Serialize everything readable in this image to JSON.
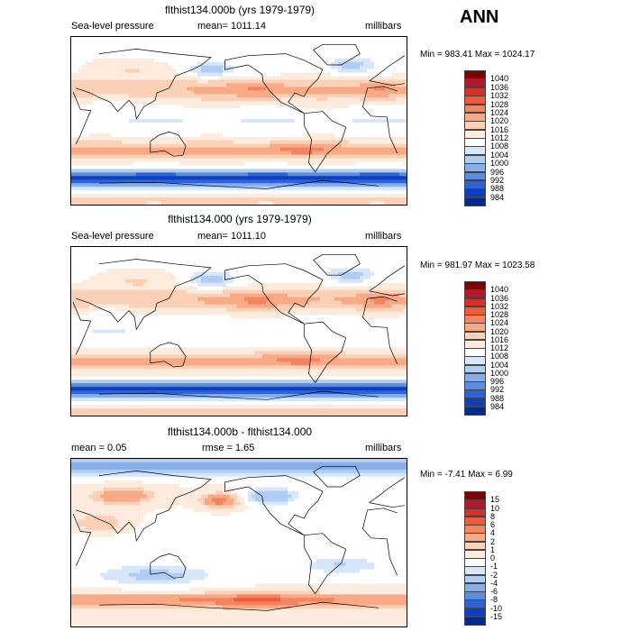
{
  "season": "ANN",
  "panels": [
    {
      "title": "flthist134.000b (yrs 1979-1979)",
      "left_label": "Sea-level pressure",
      "center_label": "mean= 1011.14",
      "right_label": "millibars",
      "minmax": "Min = 983.41 Max = 1024.17",
      "colorbar": {
        "labels": [
          "1040",
          "1036",
          "1032",
          "1028",
          "1024",
          "1020",
          "1016",
          "1012",
          "1008",
          "1004",
          "1000",
          "996",
          "992",
          "988",
          "984"
        ],
        "colors": [
          "#7f0000",
          "#b2182b",
          "#d73027",
          "#ef5a3a",
          "#f4845f",
          "#f7aa85",
          "#fbd0b6",
          "#fdebdd",
          "#ffffff",
          "#d7e7fb",
          "#b0cdf4",
          "#86aeea",
          "#5b8de0",
          "#2e64d6",
          "#0d3fc0",
          "#002a8f"
        ]
      }
    },
    {
      "title": "flthist134.000 (yrs 1979-1979)",
      "left_label": "Sea-level pressure",
      "center_label": "mean= 1011.10",
      "right_label": "millibars",
      "minmax": "Min = 981.97 Max = 1023.58",
      "colorbar": {
        "labels": [
          "1040",
          "1036",
          "1032",
          "1028",
          "1024",
          "1020",
          "1016",
          "1012",
          "1008",
          "1004",
          "1000",
          "996",
          "992",
          "988",
          "984"
        ],
        "colors": [
          "#7f0000",
          "#b2182b",
          "#d73027",
          "#ef5a3a",
          "#f4845f",
          "#f7aa85",
          "#fbd0b6",
          "#fdebdd",
          "#ffffff",
          "#d7e7fb",
          "#b0cdf4",
          "#86aeea",
          "#5b8de0",
          "#2e64d6",
          "#0d3fc0",
          "#002a8f"
        ]
      }
    },
    {
      "title": "flthist134.000b - flthist134.000",
      "left_label": "mean =    0.05",
      "center_label": "rmse =    1.65",
      "right_label": "millibars",
      "minmax": "Min =  -7.41 Max =   6.99",
      "colorbar": {
        "labels": [
          "15",
          "10",
          "8",
          "6",
          "4",
          "2",
          "1",
          "0",
          "-1",
          "-2",
          "-4",
          "-6",
          "-8",
          "-10",
          "-15"
        ],
        "colors": [
          "#7f0000",
          "#b2182b",
          "#d73027",
          "#ef5a3a",
          "#f4845f",
          "#f7aa85",
          "#fbd0b6",
          "#fdebdd",
          "#ffffff",
          "#d7e7fb",
          "#b0cdf4",
          "#86aeea",
          "#5b8de0",
          "#2e64d6",
          "#0d3fc0",
          "#002a8f"
        ]
      }
    }
  ],
  "chart_data": [
    {
      "type": "heatmap",
      "title": "flthist134.000b (yrs 1979-1979)",
      "variable": "Sea-level pressure",
      "units": "millibars",
      "mean": 1011.14,
      "min": 983.41,
      "max": 1024.17,
      "contour_levels": [
        984,
        988,
        992,
        996,
        1000,
        1004,
        1008,
        1012,
        1016,
        1020,
        1024,
        1028,
        1032,
        1036,
        1040
      ]
    },
    {
      "type": "heatmap",
      "title": "flthist134.000 (yrs 1979-1979)",
      "variable": "Sea-level pressure",
      "units": "millibars",
      "mean": 1011.1,
      "min": 981.97,
      "max": 1023.58,
      "contour_levels": [
        984,
        988,
        992,
        996,
        1000,
        1004,
        1008,
        1012,
        1016,
        1020,
        1024,
        1028,
        1032,
        1036,
        1040
      ]
    },
    {
      "type": "heatmap",
      "title": "flthist134.000b - flthist134.000",
      "units": "millibars",
      "mean": 0.05,
      "rmse": 1.65,
      "min": -7.41,
      "max": 6.99,
      "contour_levels": [
        -15,
        -10,
        -8,
        -6,
        -4,
        -2,
        -1,
        0,
        1,
        2,
        4,
        6,
        8,
        10,
        15
      ]
    }
  ]
}
